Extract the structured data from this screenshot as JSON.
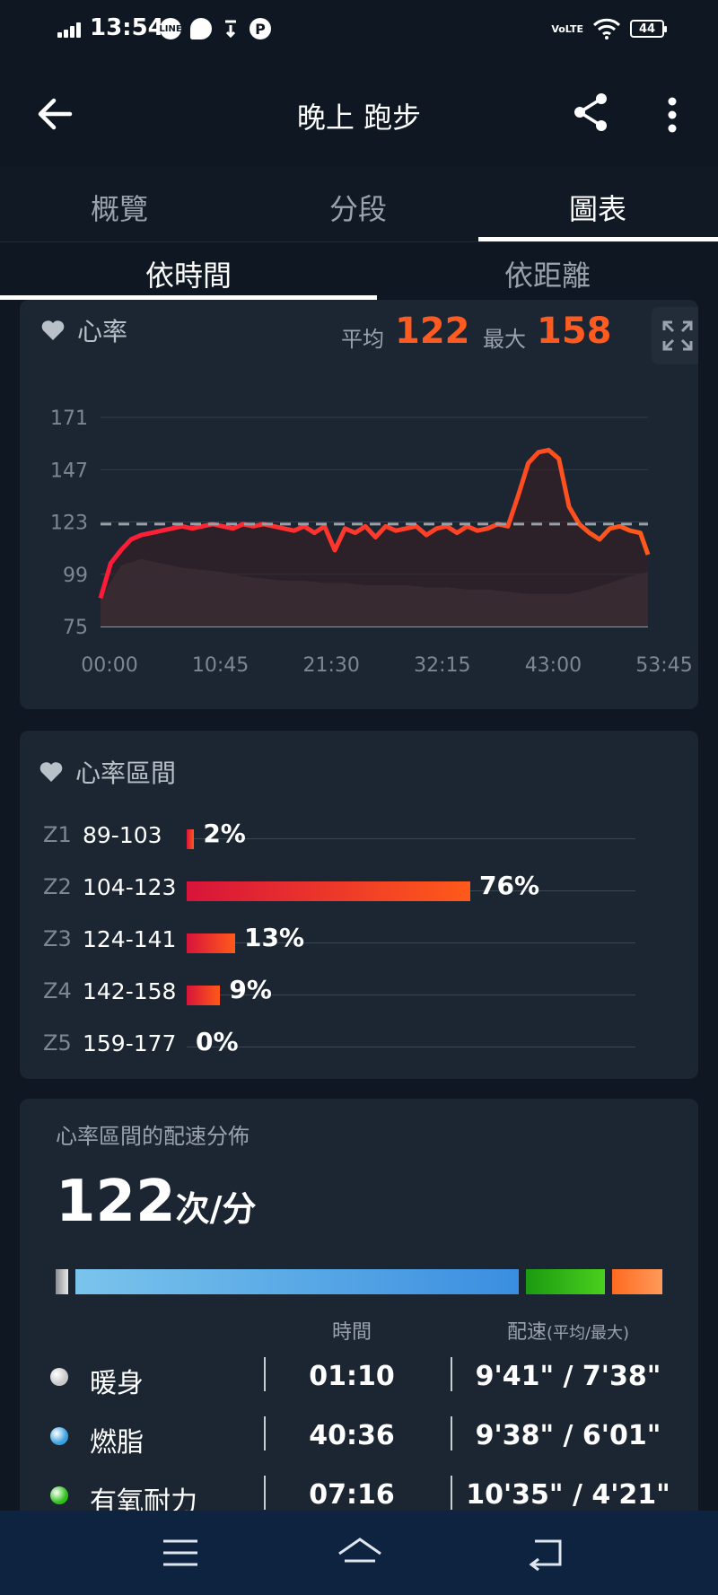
{
  "status_bar": {
    "time": "13:54",
    "icons": [
      "line-icon",
      "chat-icon",
      "download-icon",
      "parking-icon"
    ],
    "volte": "VoLTE",
    "battery": "44"
  },
  "header": {
    "title": "晚上 跑步"
  },
  "tabs": [
    {
      "label": "概覽"
    },
    {
      "label": "分段"
    },
    {
      "label": "圖表"
    }
  ],
  "subtabs": [
    {
      "label": "依時間"
    },
    {
      "label": "依距離"
    }
  ],
  "heart_rate_card": {
    "title": "心率",
    "avg_label": "平均",
    "avg_value": "122",
    "max_label": "最大",
    "max_value": "158",
    "chart_data": {
      "type": "line",
      "y_ticks": [
        "171",
        "147",
        "123",
        "99",
        "75"
      ],
      "x_ticks": [
        "00:00",
        "10:45",
        "21:30",
        "32:15",
        "43:00",
        "53:45"
      ],
      "ylim": [
        75,
        171
      ],
      "xlim": [
        0,
        53.75
      ],
      "average": 122,
      "series": [
        {
          "color": "#ff2a2a",
          "x": [
            0,
            1,
            2,
            3,
            4,
            5,
            6,
            7,
            8,
            9,
            10,
            11,
            12,
            13,
            14,
            15,
            16,
            17,
            18,
            19,
            20,
            21,
            22,
            23,
            24,
            25,
            26,
            27,
            28,
            29,
            30,
            31,
            32,
            33,
            34,
            35,
            36,
            37,
            38,
            39,
            40,
            41,
            42,
            43,
            44,
            45,
            46,
            47,
            48,
            49,
            50,
            51,
            52,
            53,
            53.75
          ],
          "y": [
            88,
            104,
            110,
            115,
            117,
            118,
            119,
            120,
            121,
            120,
            121,
            122,
            121,
            120,
            122,
            121,
            122,
            121,
            120,
            119,
            121,
            118,
            121,
            110,
            120,
            118,
            121,
            116,
            121,
            119,
            120,
            121,
            117,
            120,
            121,
            118,
            121,
            119,
            120,
            122,
            121,
            135,
            150,
            155,
            156,
            152,
            130,
            122,
            118,
            115,
            120,
            121,
            119,
            118,
            108
          ]
        },
        {
          "color": "#5a5e66",
          "x": [
            0,
            2,
            4,
            6,
            8,
            10,
            12,
            14,
            16,
            18,
            20,
            22,
            24,
            26,
            28,
            30,
            32,
            34,
            36,
            38,
            40,
            42,
            44,
            46,
            48,
            50,
            52,
            53.75
          ],
          "y": [
            88,
            103,
            106,
            104,
            102,
            101,
            100,
            98,
            97,
            96,
            96,
            95,
            95,
            94,
            94,
            94,
            93,
            93,
            92,
            92,
            91,
            90,
            90,
            90,
            92,
            95,
            98,
            100
          ]
        }
      ]
    }
  },
  "zones_card": {
    "title": "心率區間",
    "zones": [
      {
        "id": "Z1",
        "range": "89-103",
        "pct": "2%",
        "value": 2
      },
      {
        "id": "Z2",
        "range": "104-123",
        "pct": "76%",
        "value": 76
      },
      {
        "id": "Z3",
        "range": "124-141",
        "pct": "13%",
        "value": 13
      },
      {
        "id": "Z4",
        "range": "142-158",
        "pct": "9%",
        "value": 9
      },
      {
        "id": "Z5",
        "range": "159-177",
        "pct": "0%",
        "value": 0
      }
    ]
  },
  "pace_card": {
    "title": "心率區間的配速分佈",
    "value": "122",
    "unit": "次/分",
    "bar_colors": [
      "#b8bcc0",
      "#3aa0e0",
      "#2fbf1a",
      "#ff7a3a"
    ],
    "col_time": "時間",
    "col_pace": "配速",
    "col_pace_sub": "(平均/最大)",
    "rows": [
      {
        "name": "暖身",
        "time": "01:10",
        "pace": "9'41\" / 7'38\"",
        "color": "#c8c8c8"
      },
      {
        "name": "燃脂",
        "time": "40:36",
        "pace": "9'38\" / 6'01\"",
        "color": "#3aa0e0"
      },
      {
        "name": "有氧耐力",
        "time": "07:16",
        "pace": "10'35\" / 4'21\"",
        "color": "#2fbf1a"
      }
    ]
  }
}
